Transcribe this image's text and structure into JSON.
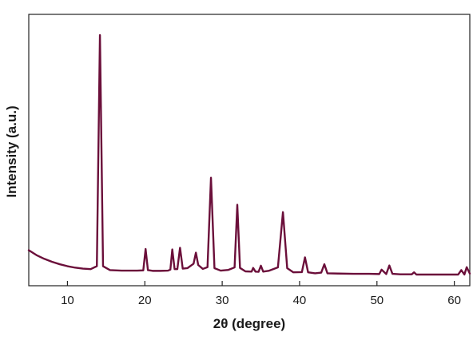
{
  "chart_data": {
    "type": "line",
    "title": "",
    "xlabel": "2θ (degree)",
    "ylabel": "Intensity (a.u.)",
    "xlim": [
      5,
      62
    ],
    "x_ticks": [
      10,
      20,
      30,
      40,
      50,
      60
    ],
    "y_ticks_shown": false,
    "grid": false,
    "legend": "none",
    "line_color": "#6b0f3a",
    "series": [
      {
        "x": [
          5,
          6,
          7,
          8,
          9,
          10,
          11,
          12,
          13,
          13.8,
          14.2,
          14.6,
          15.5,
          17,
          19,
          19.8,
          20.1,
          20.4,
          21,
          22,
          23,
          23.3,
          23.55,
          23.85,
          24.2,
          24.55,
          24.9,
          25.5,
          26.3,
          26.6,
          26.9,
          27.5,
          28.1,
          28.55,
          29.0,
          29.8,
          30.8,
          31.6,
          31.95,
          32.3,
          33.0,
          33.8,
          34.0,
          34.3,
          34.7,
          35.0,
          35.3,
          36.0,
          37.2,
          37.85,
          38.4,
          39.2,
          40.3,
          40.7,
          41.1,
          42.0,
          42.8,
          43.2,
          43.6,
          45.0,
          47.0,
          49.0,
          50.3,
          50.6,
          51.2,
          51.6,
          52.0,
          53.0,
          54.5,
          54.8,
          55.1,
          57.0,
          59.0,
          60.5,
          60.9,
          61.3,
          61.6,
          62
        ],
        "y": [
          12.5,
          10.5,
          9.0,
          7.8,
          6.8,
          6.0,
          5.4,
          5.0,
          4.8,
          6.0,
          100,
          6.0,
          4.4,
          4.2,
          4.2,
          4.3,
          13.0,
          4.4,
          4.1,
          4.1,
          4.2,
          4.6,
          12.8,
          4.8,
          4.8,
          13.5,
          5.0,
          5.2,
          7.0,
          11.5,
          6.5,
          4.9,
          5.6,
          42.0,
          5.2,
          4.2,
          4.5,
          5.5,
          31.0,
          5.3,
          3.9,
          3.8,
          5.3,
          3.8,
          3.7,
          6.2,
          3.8,
          4.1,
          5.5,
          28.0,
          5.2,
          3.5,
          3.6,
          9.6,
          3.5,
          3.1,
          3.4,
          6.8,
          3.1,
          3.0,
          2.9,
          2.9,
          2.8,
          4.6,
          2.8,
          6.3,
          2.9,
          2.7,
          2.7,
          3.5,
          2.6,
          2.6,
          2.6,
          2.6,
          4.4,
          2.6,
          5.6,
          3.0
        ]
      }
    ]
  }
}
